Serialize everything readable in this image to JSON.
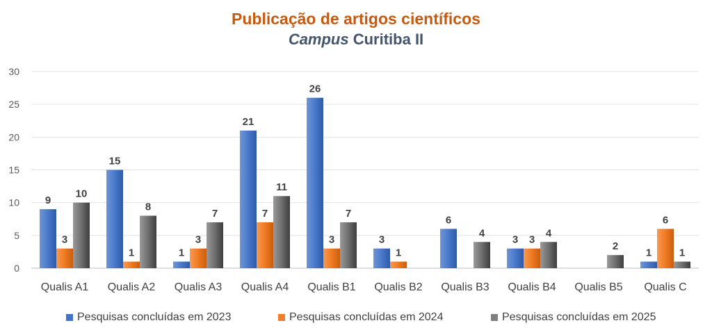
{
  "title": "Publicação de artigos científicos",
  "subtitle_italic": "Campus",
  "subtitle_rest": " Curitiba II",
  "chart_data": {
    "type": "bar",
    "title": "Publicação de artigos científicos",
    "subtitle": "Campus Curitiba II",
    "xlabel": "",
    "ylabel": "",
    "ylim": [
      0,
      30
    ],
    "yticks": [
      0,
      5,
      10,
      15,
      20,
      25,
      30
    ],
    "grid": true,
    "legend_position": "bottom",
    "categories": [
      "Qualis A1",
      "Qualis A2",
      "Qualis A3",
      "Qualis A4",
      "Qualis B1",
      "Qualis B2",
      "Qualis B3",
      "Qualis B4",
      "Qualis B5",
      "Qualis C"
    ],
    "series": [
      {
        "name": "Pesquisas concluídas em 2023",
        "color": "#4472C4",
        "values": [
          9,
          15,
          1,
          21,
          26,
          3,
          6,
          3,
          null,
          1
        ]
      },
      {
        "name": "Pesquisas concluídas em 2024",
        "color": "#ED7D31",
        "values": [
          3,
          1,
          3,
          7,
          3,
          1,
          null,
          3,
          null,
          6
        ]
      },
      {
        "name": "Pesquisas concluídas em 2025",
        "color": "#7F7F7F",
        "values": [
          10,
          8,
          7,
          11,
          7,
          null,
          4,
          4,
          2,
          1
        ]
      }
    ]
  }
}
